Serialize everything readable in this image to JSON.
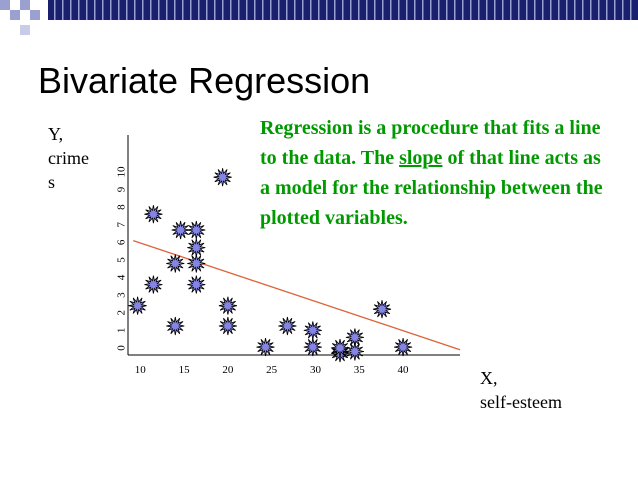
{
  "slide": {
    "title": "Bivariate Regression",
    "text": {
      "before": "Regression is a procedure that fits a line to the data. The ",
      "link": "slope",
      "after": " of that line acts as a model for the relationship between the plotted variables."
    }
  },
  "chart_data": {
    "type": "scatter",
    "y_label": [
      "Y,",
      "crime",
      "s"
    ],
    "x_label": [
      "X,",
      "self-esteem"
    ],
    "x": [
      9.7,
      11.5,
      11.5,
      14.0,
      14.0,
      14.6,
      16.4,
      16.4,
      16.4,
      16.4,
      19.4,
      20.0,
      20.0,
      24.3,
      26.8,
      29.7,
      29.7,
      32.8,
      32.8,
      34.5,
      34.5,
      37.6,
      40.0
    ],
    "values": [
      2.4,
      7.6,
      3.6,
      4.8,
      1.25,
      6.7,
      6.7,
      5.7,
      4.8,
      3.6,
      9.7,
      2.4,
      1.25,
      0.05,
      1.25,
      1.0,
      0.05,
      -0.3,
      0.0,
      0.6,
      -0.2,
      2.2,
      0.05
    ],
    "color": "#8585e6",
    "regression": {
      "x": [
        9.2,
        46.5
      ],
      "y": [
        6.1,
        -0.1
      ],
      "color": "#e0603a"
    },
    "xlim": [
      8.6,
      46.5
    ],
    "ylim": [
      -0.4,
      12.1
    ],
    "xticks": [
      10,
      15,
      20,
      25,
      30,
      35,
      40
    ],
    "yticks": [
      0,
      1,
      2,
      3,
      4,
      5,
      6,
      7,
      8,
      9,
      10
    ]
  }
}
